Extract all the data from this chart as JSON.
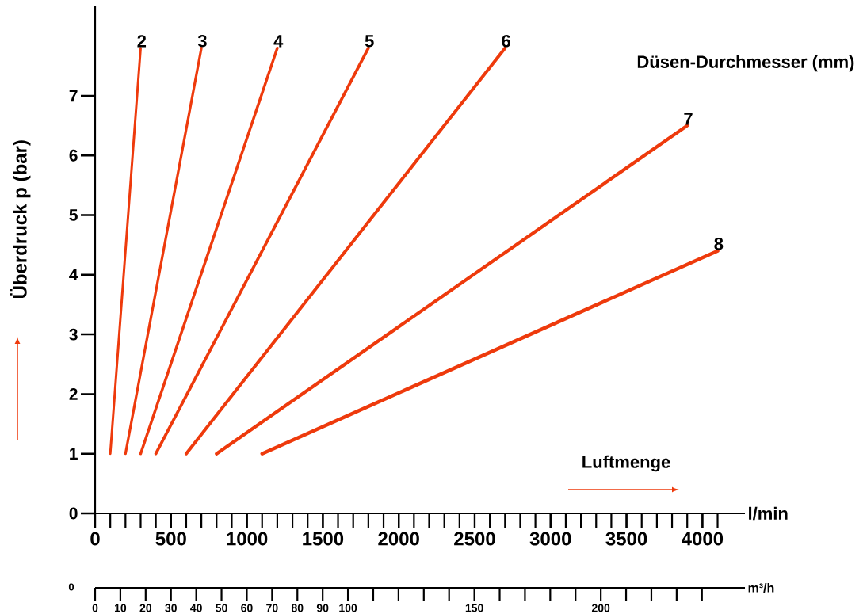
{
  "chart_data": {
    "type": "line",
    "ylabel": "Überdruck p (bar)",
    "xlabel": "l/min",
    "x2label": "m³/h",
    "legend_title": "Düsen-Durchmesser (mm)",
    "annotations": [
      "Luftmenge",
      "0"
    ],
    "marker": "none",
    "line_style": "solid",
    "xlim": [
      0,
      4280
    ],
    "ylim": [
      0,
      8.5
    ],
    "yticks": [
      0,
      1,
      2,
      3,
      4,
      5,
      6,
      7
    ],
    "xticks": [
      0,
      500,
      1000,
      1500,
      2000,
      2500,
      3000,
      3500,
      4000
    ],
    "x2lim": [
      0,
      257
    ],
    "x2ticks": [
      0,
      10,
      20,
      30,
      40,
      50,
      60,
      70,
      80,
      90,
      100,
      150,
      200
    ],
    "series": [
      {
        "name": "2",
        "color": "#ee3a0c",
        "x": [
          100,
          300
        ],
        "values": [
          1,
          7.8
        ]
      },
      {
        "name": "3",
        "color": "#ee3a0c",
        "x": [
          200,
          700
        ],
        "values": [
          1,
          7.8
        ]
      },
      {
        "name": "4",
        "color": "#ee3a0c",
        "x": [
          300,
          1200
        ],
        "values": [
          1,
          7.8
        ]
      },
      {
        "name": "5",
        "color": "#ee3a0c",
        "x": [
          400,
          1800
        ],
        "values": [
          1,
          7.8
        ]
      },
      {
        "name": "6",
        "color": "#ee3a0c",
        "x": [
          600,
          2700
        ],
        "values": [
          1,
          7.8
        ]
      },
      {
        "name": "7",
        "color": "#ee3a0c",
        "x": [
          800,
          3900
        ],
        "values": [
          1,
          6.5
        ]
      },
      {
        "name": "8",
        "color": "#ee3a0c",
        "x": [
          1100,
          4100
        ],
        "values": [
          1,
          4.4
        ]
      }
    ]
  }
}
